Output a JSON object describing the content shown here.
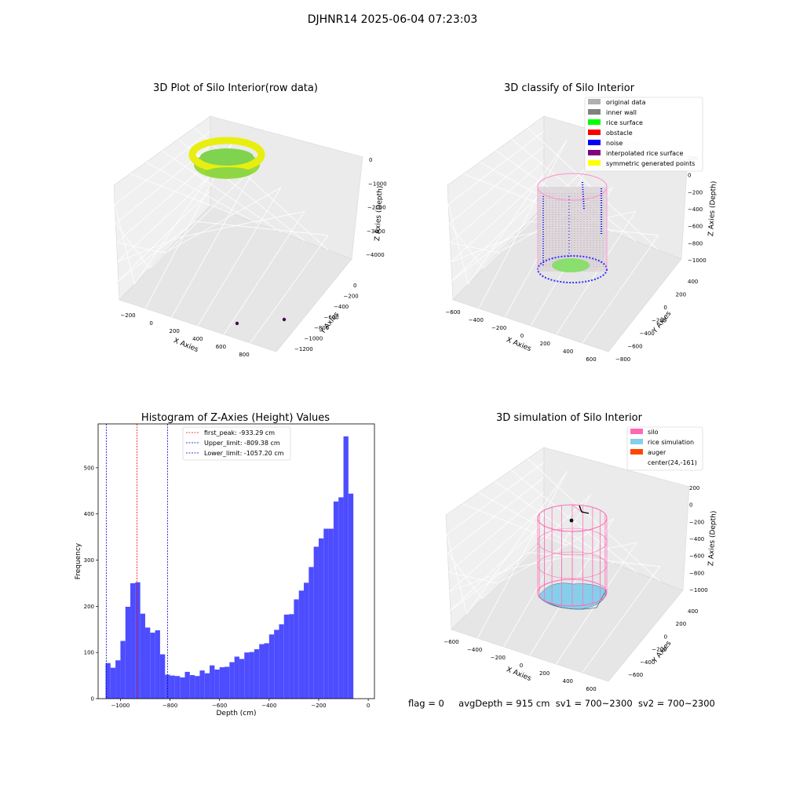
{
  "figure": {
    "suptitle": "DJHNR14 2025-06-04 07:23:03",
    "footer": {
      "flag": "flag = 0",
      "avg": "avgDepth = 915 cm",
      "sv1": "sv1 = 700~2300",
      "sv2": "sv2 = 700~2300"
    }
  },
  "chart_data": [
    {
      "type": "scatter",
      "title": "3D Plot of Silo Interior(row data)",
      "xlabel": "X Axies",
      "ylabel": "Y Axies",
      "zlabel": "Z Axies (Depth)",
      "x_ticks": [
        "−200",
        "0",
        "200",
        "400",
        "600",
        "800"
      ],
      "y_ticks": [
        "0",
        "−200",
        "−400",
        "−600",
        "−800",
        "−1000",
        "−1200"
      ],
      "z_ticks": [
        "0",
        "−1000",
        "−2000",
        "−3000",
        "−4000"
      ],
      "grid": true,
      "colors": {
        "surface_top": "#e8ef10",
        "surface_mid": "#7fd34e",
        "outlier": "#440154"
      }
    },
    {
      "type": "scatter",
      "title": "3D classify of Silo Interior",
      "xlabel": "X Axies",
      "ylabel": "Y Axies",
      "zlabel": "Z Axies (Depth)",
      "x_ticks": [
        "−600",
        "−400",
        "−200",
        "0",
        "200",
        "400",
        "600"
      ],
      "y_ticks": [
        "400",
        "200",
        "0",
        "−200",
        "−400",
        "−600",
        "−800"
      ],
      "z_ticks": [
        "200",
        "0",
        "−200",
        "−400",
        "−600",
        "−800",
        "−1000"
      ],
      "legend": [
        {
          "label": "original data",
          "color": "#b0b0b0"
        },
        {
          "label": "inner wall",
          "color": "#808080"
        },
        {
          "label": "rice surface",
          "color": "#00ff00"
        },
        {
          "label": "obstacle",
          "color": "#ff0000"
        },
        {
          "label": "noise",
          "color": "#0000ff"
        },
        {
          "label": "interpolated rice surface",
          "color": "#800080"
        },
        {
          "label": "symmetric generated points",
          "color": "#ffff00"
        }
      ],
      "legend_position": "top-right",
      "grid": true
    },
    {
      "type": "bar",
      "title": "Histogram of Z-Axies (Height) Values",
      "xlabel": "Depth (cm)",
      "ylabel": "Frequency",
      "xlim": [
        -1090,
        25
      ],
      "ylim": [
        0,
        595
      ],
      "x_ticks": [
        -1000,
        -800,
        -600,
        -400,
        -200,
        0
      ],
      "y_ticks": [
        0,
        100,
        200,
        300,
        400,
        500
      ],
      "bin_start": -1060,
      "bin_width": 20,
      "values": [
        77,
        67,
        83,
        125,
        199,
        250,
        252,
        184,
        154,
        143,
        148,
        96,
        52,
        50,
        49,
        46,
        58,
        51,
        49,
        61,
        55,
        72,
        63,
        68,
        69,
        79,
        91,
        86,
        100,
        101,
        107,
        118,
        120,
        139,
        149,
        161,
        182,
        183,
        215,
        234,
        251,
        285,
        329,
        347,
        368,
        368,
        427,
        436,
        568,
        444
      ],
      "bar_color": "#4d4dff",
      "lines": [
        {
          "label": "first_peak: -933.29 cm",
          "value": -933.29,
          "color": "#ff0000"
        },
        {
          "label": "Upper_limit: -809.38 cm",
          "value": -809.38,
          "color": "#0000cc"
        },
        {
          "label": "Lower_limit: -1057.20 cm",
          "value": -1057.2,
          "color": "#0000cc"
        }
      ],
      "legend_position": "top-center"
    },
    {
      "type": "area",
      "title": "3D simulation of Silo Interior",
      "xlabel": "X Axies",
      "ylabel": "Y Axies",
      "zlabel": "Z Axies (Depth)",
      "x_ticks": [
        "−600",
        "−400",
        "−200",
        "0",
        "200",
        "400",
        "600"
      ],
      "y_ticks": [
        "400",
        "200",
        "0",
        "−200",
        "−400",
        "−600"
      ],
      "z_ticks": [
        "200",
        "0",
        "−200",
        "−400",
        "−600",
        "−800",
        "−1000"
      ],
      "legend": [
        {
          "label": "silo",
          "color": "#ff69b4"
        },
        {
          "label": "rice simulation",
          "color": "#87ceeb"
        },
        {
          "label": "auger",
          "color": "#ff4500"
        },
        {
          "label": "center(24,-161)",
          "color": ""
        }
      ],
      "legend_position": "top-right",
      "grid": true
    }
  ]
}
